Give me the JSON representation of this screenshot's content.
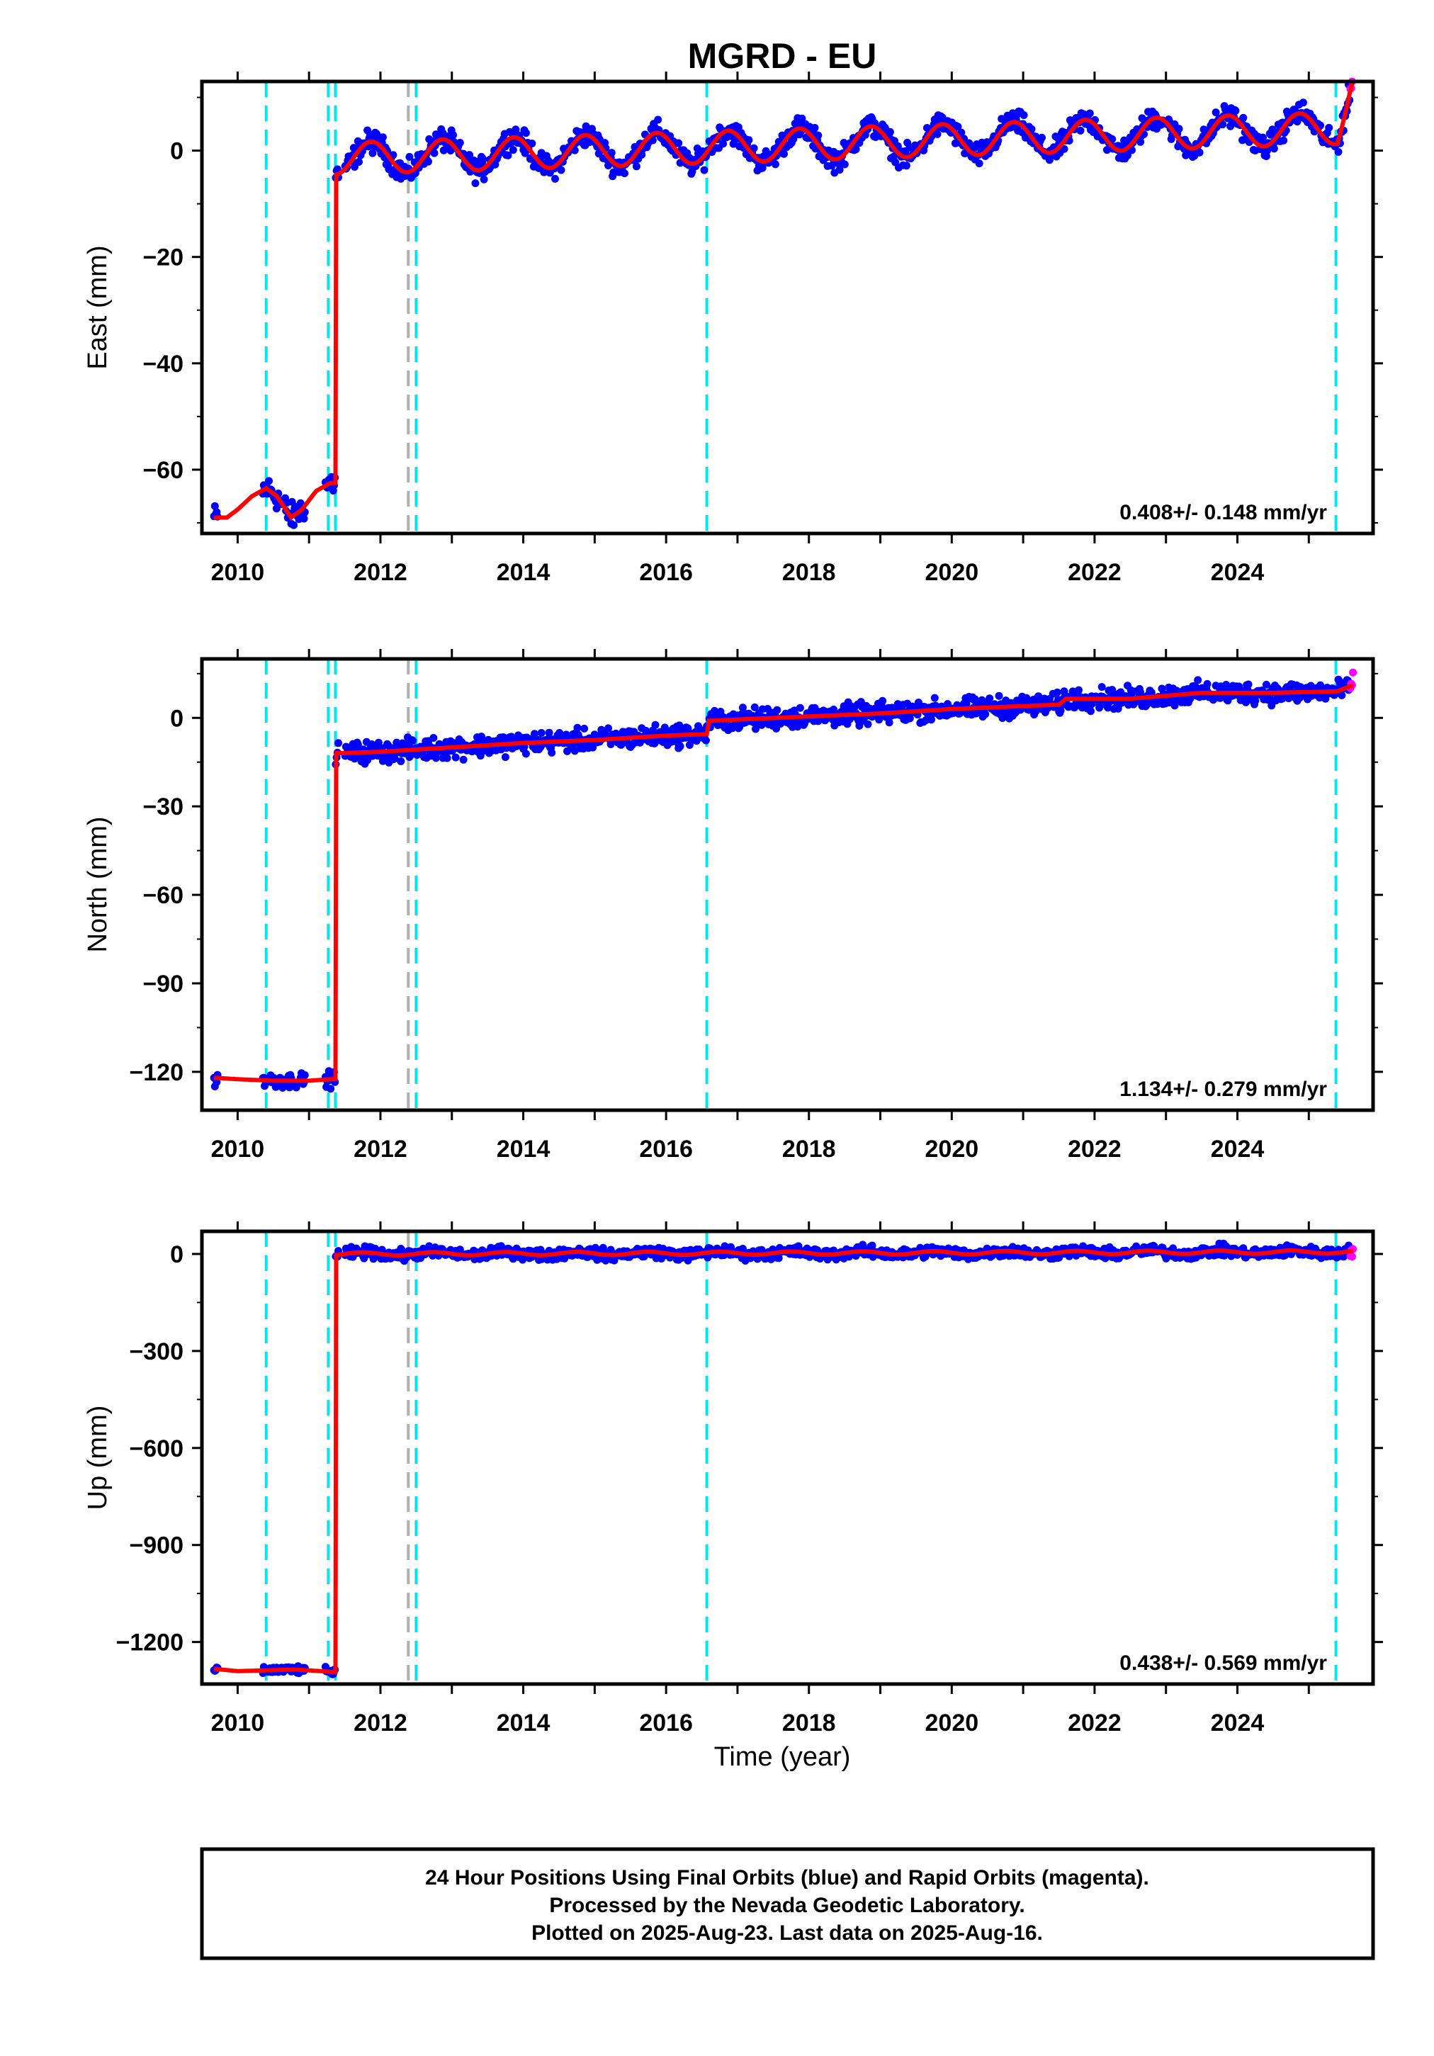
{
  "chart_data": {
    "type": "scatter",
    "title": "MGRD - EU",
    "xlabel": "Time (year)",
    "x_ticks": [
      2010,
      2012,
      2014,
      2016,
      2018,
      2020,
      2022,
      2024
    ],
    "xlim": [
      2009.5,
      2025.9
    ],
    "event_lines": {
      "cyan_dashed": [
        2010.4,
        2011.27,
        2011.37,
        2012.5,
        2016.57,
        2025.38
      ],
      "gray_dashed": [
        2012.39
      ]
    },
    "panels": [
      {
        "ylabel": "East (mm)",
        "ylim": [
          -72,
          13
        ],
        "y_ticks": [
          0,
          -20,
          -40,
          -60
        ],
        "rate_text": "0.408+/- 0.148 mm/yr",
        "offset_epoch": 2011.37,
        "pre_offset": [
          [
            2009.67,
            -69
          ],
          [
            2009.85,
            -69
          ],
          [
            2010.0,
            -67.5
          ],
          [
            2010.2,
            -65
          ],
          [
            2010.4,
            -63.5
          ],
          [
            2010.55,
            -65
          ],
          [
            2010.75,
            -69
          ],
          [
            2010.9,
            -67.5
          ],
          [
            2011.1,
            -64
          ],
          [
            2011.3,
            -62.5
          ]
        ],
        "post_offset": {
          "base": -1.5,
          "trend_per_year": 0.408,
          "annual_amplitude": 3.0,
          "annual_phase": 2011.62,
          "end_step": 8.5
        }
      },
      {
        "ylabel": "North (mm)",
        "ylim": [
          -133,
          20
        ],
        "y_ticks": [
          0,
          -30,
          -60,
          -90,
          -120
        ],
        "rate_text": "1.134+/- 0.279 mm/yr",
        "offset_epoch": 2011.37,
        "pre_offset": [
          [
            2009.67,
            -122
          ],
          [
            2010.0,
            -122.5
          ],
          [
            2010.5,
            -123
          ],
          [
            2011.0,
            -123
          ],
          [
            2011.3,
            -122.5
          ]
        ],
        "post_offset": {
          "knots": [
            [
              2011.37,
              -12
            ],
            [
              2012.0,
              -11.5
            ],
            [
              2013.0,
              -10
            ],
            [
              2014.0,
              -8.5
            ],
            [
              2015.0,
              -7.5
            ],
            [
              2016.0,
              -6
            ],
            [
              2016.57,
              -5.5
            ],
            [
              2016.6,
              -1
            ],
            [
              2018.0,
              0.5
            ],
            [
              2019.0,
              1.5
            ],
            [
              2020.0,
              3
            ],
            [
              2021.0,
              4
            ],
            [
              2021.5,
              4.5
            ],
            [
              2021.6,
              6.5
            ],
            [
              2022.5,
              6.5
            ],
            [
              2023.5,
              8.5
            ],
            [
              2024.5,
              8.5
            ],
            [
              2025.4,
              9
            ],
            [
              2025.7,
              12
            ]
          ],
          "scatter": 2.5
        }
      },
      {
        "ylabel": "Up (mm)",
        "ylim": [
          -1330,
          70
        ],
        "y_ticks": [
          0,
          -300,
          -600,
          -900,
          -1200
        ],
        "rate_text": "0.438+/- 0.569 mm/yr",
        "offset_epoch": 2011.37,
        "pre_offset": [
          [
            2009.67,
            -1283
          ],
          [
            2010.0,
            -1290
          ],
          [
            2010.5,
            -1287
          ],
          [
            2010.8,
            -1285
          ],
          [
            2011.3,
            -1292
          ]
        ],
        "post_offset": {
          "base": 0,
          "trend_per_year": 0.438,
          "annual_amplitude": 5,
          "annual_phase": 2011.5,
          "scatter": 12
        }
      }
    ],
    "series": [
      {
        "name": "Final Orbits (blue)",
        "color": "#0000ff"
      },
      {
        "name": "Rapid Orbits (magenta)",
        "color": "#ff00ff"
      },
      {
        "color": "#ff0000"
      }
    ],
    "rapid_start": 2025.58,
    "data_end": 2025.62
  },
  "footer": {
    "line1": "24 Hour Positions Using Final Orbits (blue) and Rapid Orbits (magenta).",
    "line2": "Processed by the Nevada Geodetic Laboratory.",
    "line3": "Plotted on 2025-Aug-23. Last data on 2025-Aug-16."
  }
}
